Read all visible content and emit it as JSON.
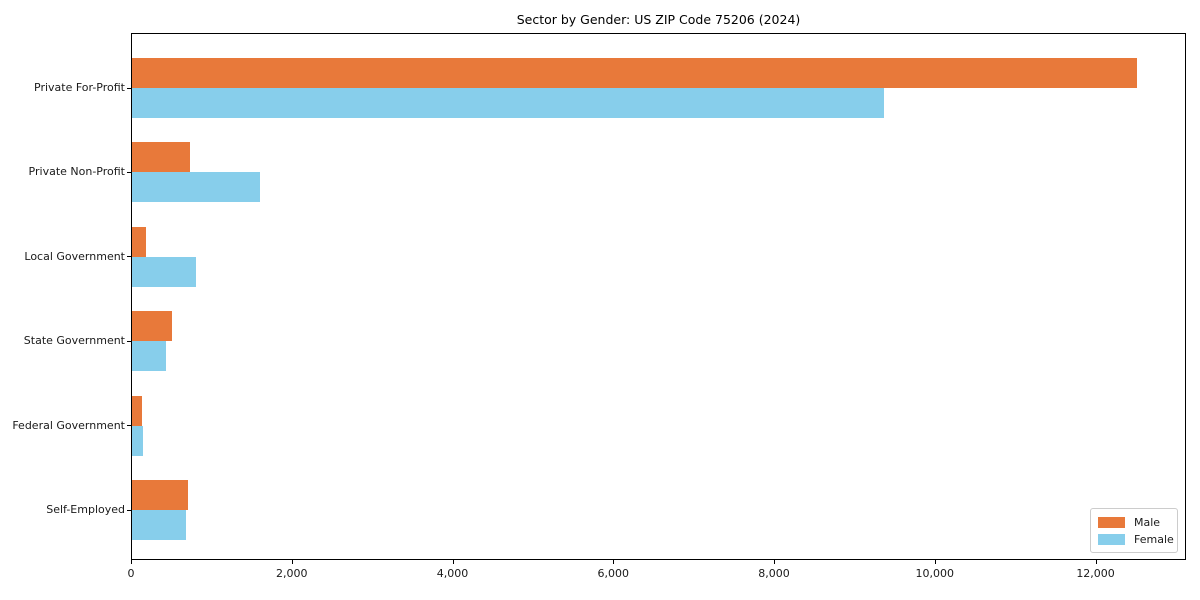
{
  "title": "Sector by Gender: US ZIP Code 75206 (2024)",
  "chart_data": {
    "type": "bar",
    "orientation": "horizontal",
    "title": "Sector by Gender: US ZIP Code 75206 (2024)",
    "xlabel": "",
    "ylabel": "",
    "categories": [
      "Private For-Profit",
      "Private Non-Profit",
      "Local Government",
      "State Government",
      "Federal Government",
      "Self-Employed"
    ],
    "series": [
      {
        "name": "Male",
        "color": "#E8793A",
        "values": [
          12500,
          720,
          180,
          500,
          120,
          700
        ]
      },
      {
        "name": "Female",
        "color": "#87CEEB",
        "values": [
          9360,
          1590,
          800,
          425,
          135,
          670
        ]
      }
    ],
    "xlim": [
      0,
      13125
    ],
    "x_ticks": [
      0,
      2000,
      4000,
      6000,
      8000,
      10000,
      12000
    ],
    "x_tick_labels": [
      "0",
      "2,000",
      "4,000",
      "6,000",
      "8,000",
      "10,000",
      "12,000"
    ],
    "grid": false,
    "legend": {
      "position": "lower right",
      "entries": [
        "Male",
        "Female"
      ]
    }
  },
  "colors": {
    "male": "#E8793A",
    "female": "#87CEEB",
    "axes": "#000000",
    "text": "#1a1a1a",
    "legend_border": "#cccccc",
    "background": "#ffffff"
  }
}
